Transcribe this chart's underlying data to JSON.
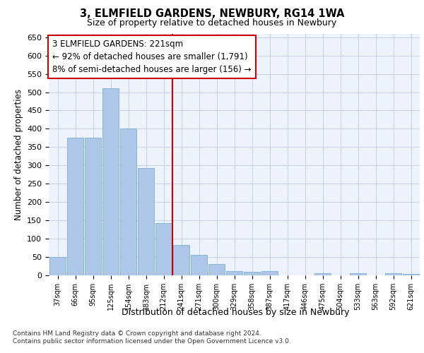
{
  "title1": "3, ELMFIELD GARDENS, NEWBURY, RG14 1WA",
  "title2": "Size of property relative to detached houses in Newbury",
  "xlabel": "Distribution of detached houses by size in Newbury",
  "ylabel": "Number of detached properties",
  "categories": [
    "37sqm",
    "66sqm",
    "95sqm",
    "125sqm",
    "154sqm",
    "183sqm",
    "212sqm",
    "241sqm",
    "271sqm",
    "300sqm",
    "329sqm",
    "358sqm",
    "387sqm",
    "417sqm",
    "446sqm",
    "475sqm",
    "504sqm",
    "533sqm",
    "563sqm",
    "592sqm",
    "621sqm"
  ],
  "values": [
    50,
    375,
    375,
    510,
    400,
    293,
    143,
    83,
    55,
    30,
    12,
    10,
    12,
    0,
    0,
    5,
    0,
    5,
    0,
    5,
    4
  ],
  "bar_color": "#aec6e8",
  "bar_edge_color": "#7aafd4",
  "vline_x": 6.5,
  "vline_color": "#cc0000",
  "annotation_text": "3 ELMFIELD GARDENS: 221sqm\n← 92% of detached houses are smaller (1,791)\n8% of semi-detached houses are larger (156) →",
  "annotation_box_edgecolor": "#cc0000",
  "ylim": [
    0,
    660
  ],
  "yticks": [
    0,
    50,
    100,
    150,
    200,
    250,
    300,
    350,
    400,
    450,
    500,
    550,
    600,
    650
  ],
  "footer1": "Contains HM Land Registry data © Crown copyright and database right 2024.",
  "footer2": "Contains public sector information licensed under the Open Government Licence v3.0.",
  "bg_color": "#eef2fb",
  "grid_color": "#c8d0e8"
}
